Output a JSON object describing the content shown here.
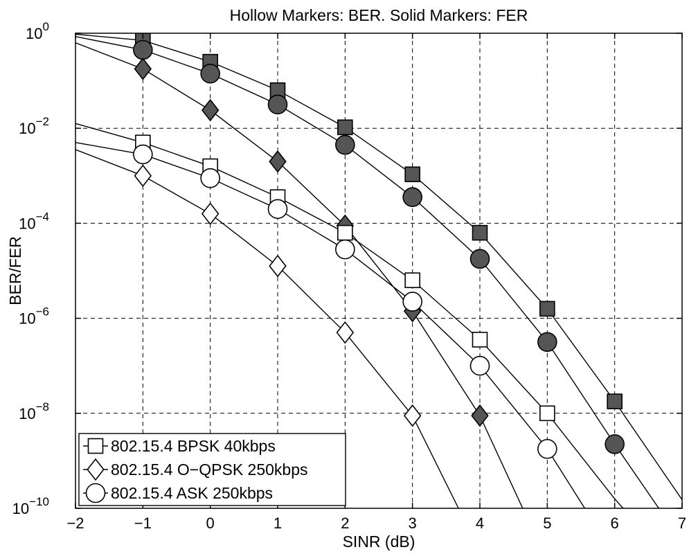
{
  "chart_data": {
    "type": "line",
    "title": "Hollow Markers: BER. Solid Markers: FER",
    "xlabel": "SINR (dB)",
    "ylabel": "BER/FER",
    "xlim": [
      -2,
      7
    ],
    "ylim_log10": [
      -10,
      0
    ],
    "y_scale": "log",
    "grid": true,
    "x_ticks": [
      "−2",
      "−1",
      "0",
      "1",
      "2",
      "3",
      "4",
      "5",
      "6",
      "7"
    ],
    "y_ticks": [
      {
        "base": "10",
        "exp": "0"
      },
      {
        "base": "10",
        "exp": "−2"
      },
      {
        "base": "10",
        "exp": "−4"
      },
      {
        "base": "10",
        "exp": "−6"
      },
      {
        "base": "10",
        "exp": "−8"
      },
      {
        "base": "10",
        "exp": "−10"
      }
    ],
    "legend": {
      "position": "bottom-left",
      "entries": [
        {
          "label": "802.15.4 BPSK 40kbps",
          "marker": "square"
        },
        {
          "label": "802.15.4 O−QPSK 250kbps",
          "marker": "diamond"
        },
        {
          "label": "802.15.4 ASK 250kbps",
          "marker": "circle"
        }
      ]
    },
    "series": [
      {
        "group": "BPSK",
        "metric": "FER",
        "marker": "square",
        "filled": true,
        "x": [
          -2,
          -1,
          0,
          1,
          2,
          3,
          4,
          5,
          6,
          7
        ],
        "log10y": [
          -0.02,
          -0.15,
          -0.6,
          -1.2,
          -1.98,
          -2.97,
          -4.2,
          -5.8,
          -7.75,
          -9.82
        ],
        "marker_x": [
          -1,
          0,
          1,
          2,
          3,
          4,
          5,
          6
        ]
      },
      {
        "group": "ASK",
        "metric": "FER",
        "marker": "circle",
        "filled": true,
        "x": [
          -2,
          -1,
          0,
          1,
          2,
          3,
          4,
          5,
          6,
          6.8
        ],
        "log10y": [
          -0.07,
          -0.35,
          -0.85,
          -1.5,
          -2.35,
          -3.45,
          -4.75,
          -6.5,
          -8.65,
          -10.3
        ],
        "marker_x": [
          -1,
          0,
          1,
          2,
          3,
          4,
          5,
          6
        ]
      },
      {
        "group": "O-QPSK",
        "metric": "FER",
        "marker": "diamond",
        "filled": true,
        "x": [
          -2,
          -1,
          0,
          1,
          2,
          3,
          4,
          4.7
        ],
        "log10y": [
          -0.2,
          -0.75,
          -1.62,
          -2.7,
          -4.05,
          -5.85,
          -8.05,
          -10.2
        ],
        "marker_x": [
          -1,
          0,
          1,
          2,
          3,
          4
        ]
      },
      {
        "group": "BPSK",
        "metric": "BER",
        "marker": "square",
        "filled": false,
        "x": [
          -2,
          -1,
          0,
          1,
          2,
          3,
          4,
          5,
          6,
          6.5
        ],
        "log10y": [
          -1.9,
          -2.3,
          -2.8,
          -3.45,
          -4.2,
          -5.2,
          -6.45,
          -8.0,
          -9.8,
          -10.6
        ],
        "marker_x": [
          -1,
          0,
          1,
          2,
          3,
          4,
          5
        ]
      },
      {
        "group": "ASK",
        "metric": "BER",
        "marker": "circle",
        "filled": false,
        "x": [
          -2,
          -1,
          0,
          1,
          2,
          3,
          4,
          5,
          5.6
        ],
        "log10y": [
          -2.3,
          -2.55,
          -3.05,
          -3.7,
          -4.55,
          -5.65,
          -7.0,
          -8.75,
          -10.1
        ],
        "marker_x": [
          -1,
          0,
          1,
          2,
          3,
          4,
          5
        ]
      },
      {
        "group": "O-QPSK",
        "metric": "BER",
        "marker": "diamond",
        "filled": false,
        "x": [
          -2,
          -1,
          0,
          1,
          2,
          3,
          3.7
        ],
        "log10y": [
          -2.45,
          -3.0,
          -3.8,
          -4.9,
          -6.3,
          -8.05,
          -10.05
        ],
        "marker_x": [
          -1,
          0,
          1,
          2,
          3
        ]
      }
    ]
  }
}
